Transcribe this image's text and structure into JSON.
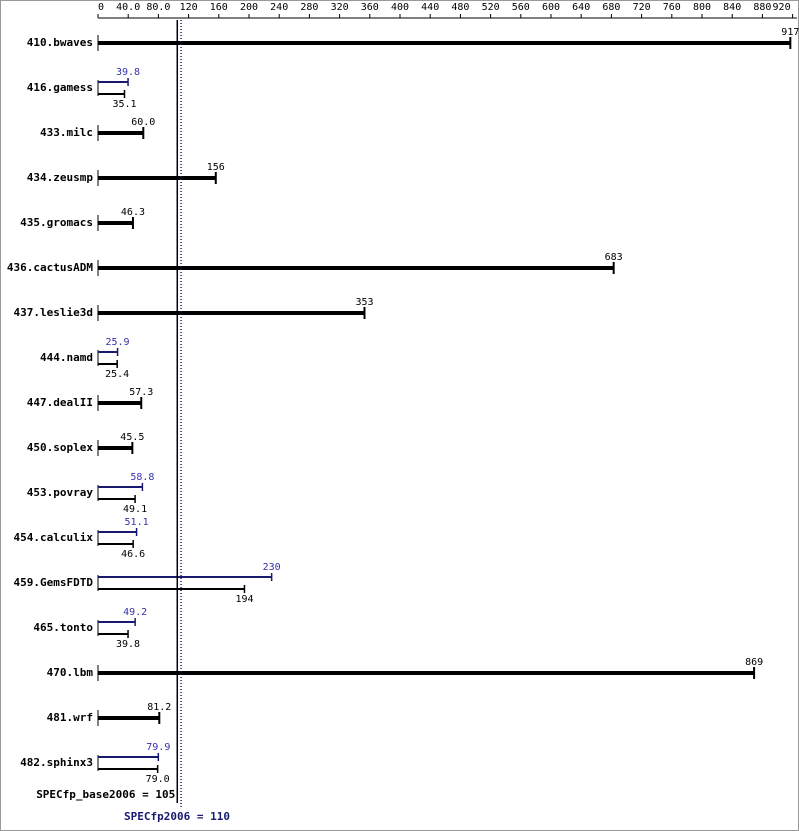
{
  "chart_data": {
    "type": "bar",
    "orientation": "horizontal",
    "categories": [
      "410.bwaves",
      "416.gamess",
      "433.milc",
      "434.zeusmp",
      "435.gromacs",
      "436.cactusADM",
      "437.leslie3d",
      "444.namd",
      "447.dealII",
      "450.soplex",
      "453.povray",
      "454.calculix",
      "459.GemsFDTD",
      "465.tonto",
      "470.lbm",
      "481.wrf",
      "482.sphinx3"
    ],
    "series": [
      {
        "color": "#000000",
        "values": [
          917,
          35.1,
          60.0,
          156,
          46.3,
          683,
          353,
          25.4,
          57.3,
          45.5,
          49.1,
          46.6,
          194,
          39.8,
          869,
          81.2,
          79.0
        ],
        "value_labels": [
          "917",
          "35.1",
          "60.0",
          "156",
          "46.3",
          "683",
          "353",
          "25.4",
          "57.3",
          "45.5",
          "49.1",
          "46.6",
          "194",
          "39.8",
          "869",
          "81.2",
          "79.0"
        ]
      },
      {
        "color": "#191970",
        "values": [
          null,
          39.8,
          null,
          null,
          null,
          null,
          null,
          25.9,
          null,
          null,
          58.8,
          51.1,
          230,
          49.2,
          null,
          null,
          79.9
        ],
        "value_labels": [
          null,
          "39.8",
          null,
          null,
          null,
          null,
          null,
          "25.9",
          null,
          null,
          "58.8",
          "51.1",
          "230",
          "49.2",
          null,
          null,
          "79.9"
        ]
      }
    ],
    "xlim": [
      0,
      920
    ],
    "xticks": [
      0,
      {
        "value": 40,
        "label": "40.0"
      },
      {
        "value": 80,
        "label": "80.0"
      },
      120,
      160,
      200,
      240,
      280,
      320,
      360,
      400,
      440,
      480,
      520,
      560,
      600,
      640,
      680,
      720,
      760,
      800,
      840,
      880,
      920
    ],
    "reference_lines": [
      {
        "label": "SPECfp_base2006 = 105",
        "value": 105,
        "color": "#000000"
      },
      {
        "label": "SPECfp2006 = 110",
        "value": 110,
        "color": "#191970"
      }
    ]
  }
}
